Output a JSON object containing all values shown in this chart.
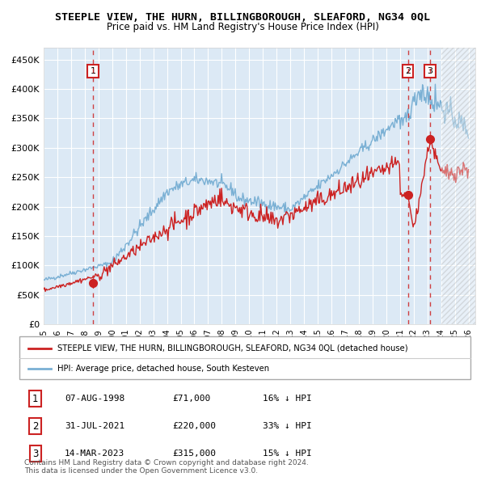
{
  "title": "STEEPLE VIEW, THE HURN, BILLINGBOROUGH, SLEAFORD, NG34 0QL",
  "subtitle": "Price paid vs. HM Land Registry's House Price Index (HPI)",
  "xlim_start": 1995.0,
  "xlim_end": 2026.5,
  "ylim": [
    0,
    470000
  ],
  "yticks": [
    0,
    50000,
    100000,
    150000,
    200000,
    250000,
    300000,
    350000,
    400000,
    450000
  ],
  "sale_dates": [
    1998.6,
    2021.58,
    2023.2
  ],
  "sale_prices": [
    71000,
    220000,
    315000
  ],
  "sale_labels": [
    "1",
    "2",
    "3"
  ],
  "red_line_color": "#cc2222",
  "blue_line_color": "#7ab0d4",
  "bg_color": "#dce9f5",
  "vline_color": "#cc2222",
  "legend_label_red": "STEEPLE VIEW, THE HURN, BILLINGBOROUGH, SLEAFORD, NG34 0QL (detached house)",
  "legend_label_blue": "HPI: Average price, detached house, South Kesteven",
  "table_rows": [
    [
      "1",
      "07-AUG-1998",
      "£71,000",
      "16% ↓ HPI"
    ],
    [
      "2",
      "31-JUL-2021",
      "£220,000",
      "33% ↓ HPI"
    ],
    [
      "3",
      "14-MAR-2023",
      "£315,000",
      "15% ↓ HPI"
    ]
  ],
  "footer_text": "Contains HM Land Registry data © Crown copyright and database right 2024.\nThis data is licensed under the Open Government Licence v3.0.",
  "hatch_region_start": 2024.0,
  "xticks": [
    1995,
    1996,
    1997,
    1998,
    1999,
    2000,
    2001,
    2002,
    2003,
    2004,
    2005,
    2006,
    2007,
    2008,
    2009,
    2010,
    2011,
    2012,
    2013,
    2014,
    2015,
    2016,
    2017,
    2018,
    2019,
    2020,
    2021,
    2022,
    2023,
    2024,
    2025,
    2026
  ]
}
